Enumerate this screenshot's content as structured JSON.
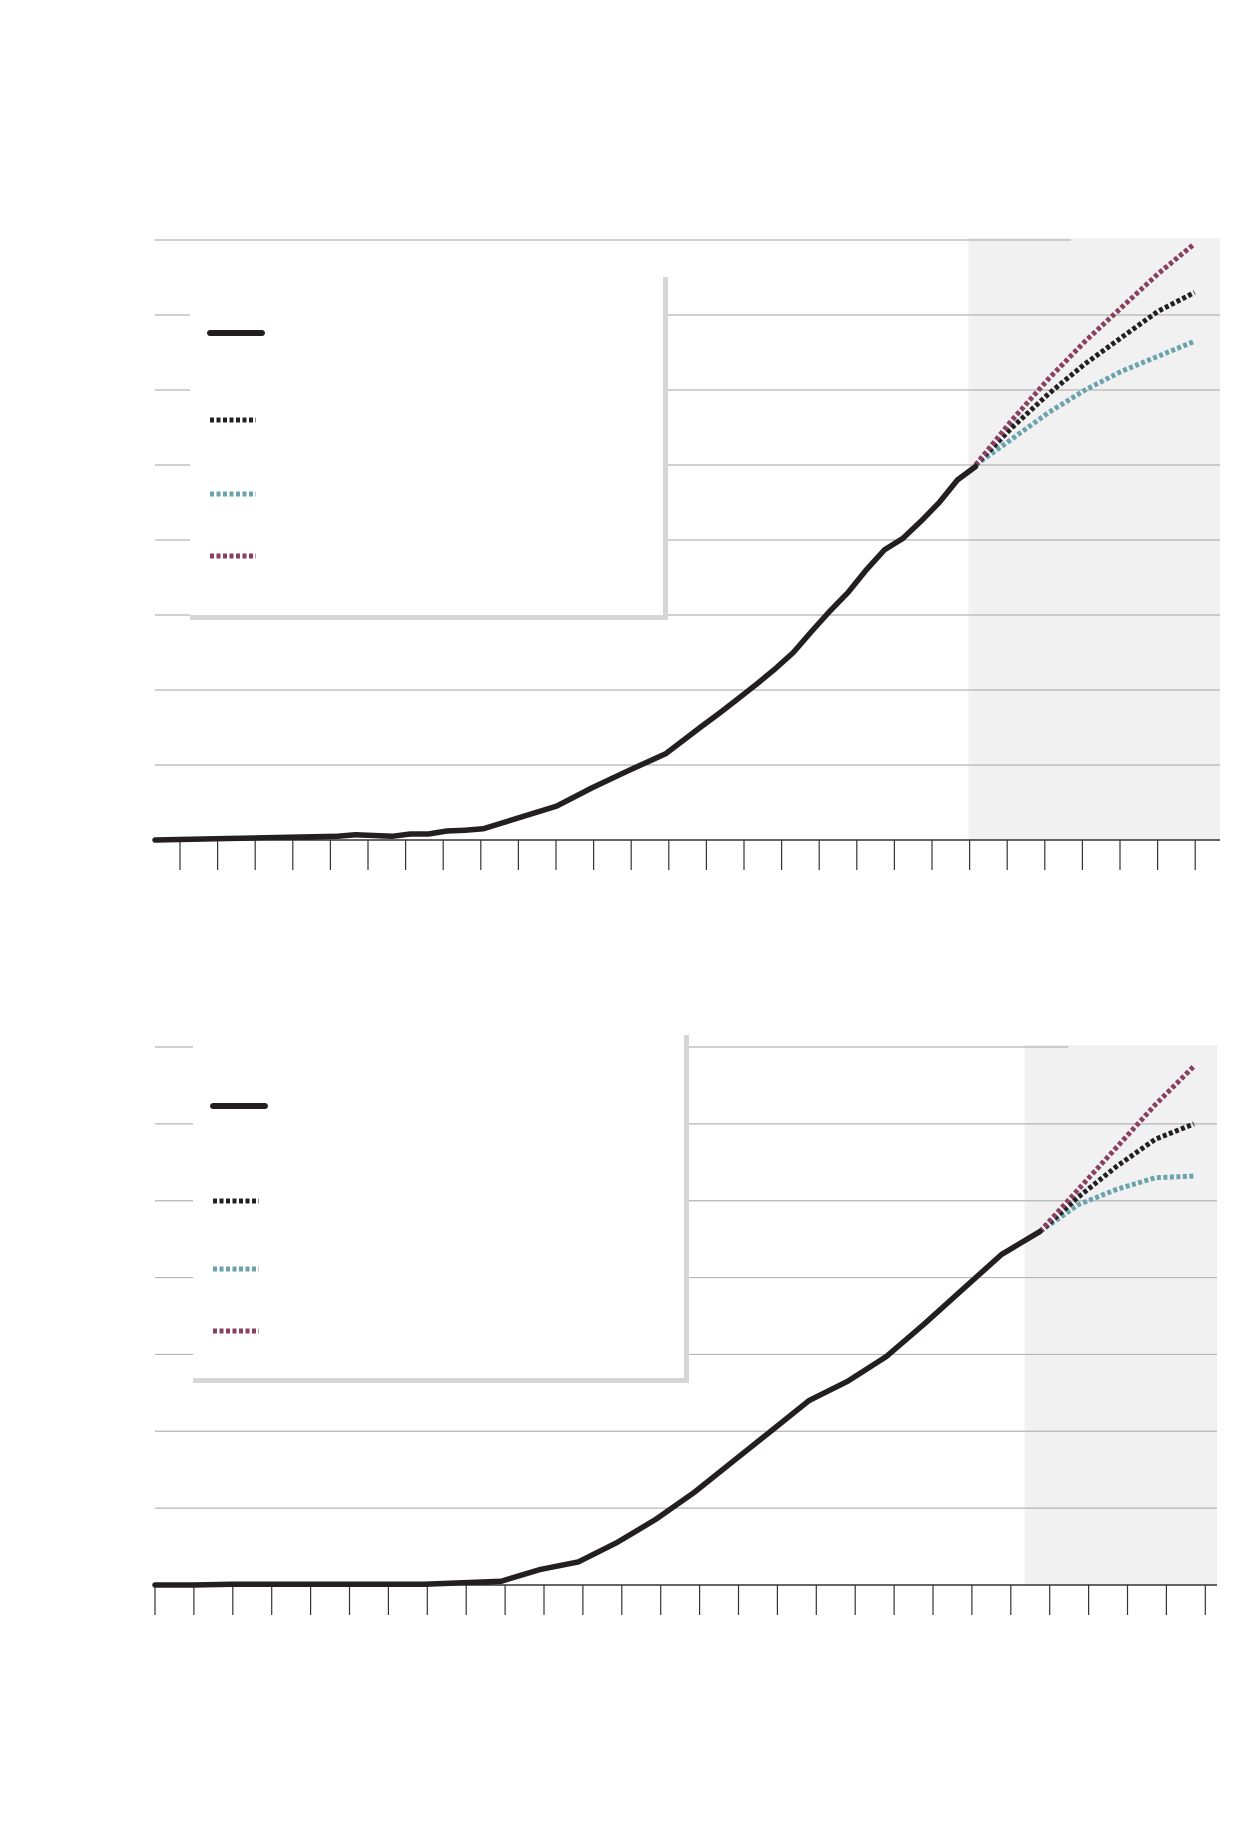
{
  "colors": {
    "background": "#ffffff",
    "projection_band": "#f1f1f1",
    "gridline": "#b5b5b5",
    "axis": "#333333",
    "legend_shadow": "#d6d6d6",
    "actual": "#231f20",
    "medium": "#231f20",
    "low": "#6aa3ad",
    "high": "#8a3e60"
  },
  "chart_data": [
    {
      "type": "line",
      "title": "",
      "xlabel": "",
      "ylabel": "",
      "ylim": [
        0,
        8
      ],
      "xlim": [
        0,
        29.2
      ],
      "projection_start": 22.3,
      "grid": true,
      "legend_placement": "top-left",
      "legend": [
        {
          "key": "actual",
          "style": "solid",
          "label": ""
        },
        {
          "key": "medium",
          "style": "dotted",
          "label": ""
        },
        {
          "key": "low",
          "style": "dotted",
          "label": ""
        },
        {
          "key": "high",
          "style": "dotted",
          "label": ""
        }
      ],
      "series": [
        {
          "key": "actual",
          "style": "solid",
          "x": [
            0,
            1,
            2,
            3,
            4,
            5,
            5.5,
            6,
            6.5,
            7,
            7.5,
            8,
            8.5,
            9,
            10,
            11,
            12,
            13,
            14,
            15,
            15.5,
            16,
            16.5,
            17,
            17.5,
            18,
            18.5,
            19,
            19.5,
            20,
            20.5,
            21,
            21.5,
            22,
            22.5
          ],
          "y": [
            0,
            0.01,
            0.02,
            0.03,
            0.04,
            0.05,
            0.07,
            0.06,
            0.05,
            0.08,
            0.08,
            0.12,
            0.13,
            0.15,
            0.3,
            0.45,
            0.7,
            0.93,
            1.15,
            1.52,
            1.7,
            1.89,
            2.08,
            2.28,
            2.5,
            2.78,
            3.05,
            3.3,
            3.6,
            3.87,
            4.02,
            4.25,
            4.5,
            4.8,
            4.98
          ]
        },
        {
          "key": "medium",
          "style": "dotted",
          "x": [
            22.5,
            23.5,
            24.5,
            25.5,
            26.5,
            27.5,
            28.5
          ],
          "y": [
            5.0,
            5.5,
            5.95,
            6.35,
            6.7,
            7.05,
            7.3
          ]
        },
        {
          "key": "low",
          "style": "dotted",
          "x": [
            22.5,
            23.5,
            24.5,
            25.5,
            26.5,
            27.5,
            28.5
          ],
          "y": [
            5.0,
            5.35,
            5.7,
            6.0,
            6.25,
            6.45,
            6.65
          ]
        },
        {
          "key": "high",
          "style": "dotted",
          "x": [
            22.5,
            23.5,
            24.5,
            25.5,
            26.5,
            27.5,
            28.5
          ],
          "y": [
            5.0,
            5.6,
            6.15,
            6.65,
            7.1,
            7.55,
            7.95
          ]
        }
      ]
    },
    {
      "type": "line",
      "title": "",
      "xlabel": "",
      "ylabel": "",
      "ylim": [
        0,
        7
      ],
      "xlim": [
        0,
        27.6
      ],
      "projection_start": 22.6,
      "grid": true,
      "legend_placement": "top-left",
      "legend": [
        {
          "key": "actual",
          "style": "solid",
          "label": ""
        },
        {
          "key": "medium",
          "style": "dotted",
          "label": ""
        },
        {
          "key": "low",
          "style": "dotted",
          "label": ""
        },
        {
          "key": "high",
          "style": "dotted",
          "label": ""
        }
      ],
      "series": [
        {
          "key": "actual",
          "style": "solid",
          "x": [
            0,
            1,
            2,
            3,
            4,
            5,
            6,
            7,
            8,
            9,
            10,
            11,
            12,
            13,
            14,
            15,
            16,
            17,
            18,
            19,
            20,
            21,
            22,
            23
          ],
          "y": [
            0,
            0,
            0.01,
            0.01,
            0.01,
            0.01,
            0.01,
            0.01,
            0.03,
            0.05,
            0.2,
            0.3,
            0.55,
            0.85,
            1.2,
            1.6,
            2.0,
            2.4,
            2.65,
            2.97,
            3.4,
            3.85,
            4.3,
            4.6
          ]
        },
        {
          "key": "medium",
          "style": "dotted",
          "x": [
            23,
            24,
            25,
            26,
            27
          ],
          "y": [
            4.6,
            5.05,
            5.45,
            5.8,
            6.0
          ]
        },
        {
          "key": "low",
          "style": "dotted",
          "x": [
            23,
            24,
            25,
            26,
            27
          ],
          "y": [
            4.6,
            4.95,
            5.15,
            5.3,
            5.32
          ]
        },
        {
          "key": "high",
          "style": "dotted",
          "x": [
            23,
            24,
            25,
            26,
            27
          ],
          "y": [
            4.6,
            5.15,
            5.7,
            6.25,
            6.75
          ]
        }
      ]
    }
  ]
}
